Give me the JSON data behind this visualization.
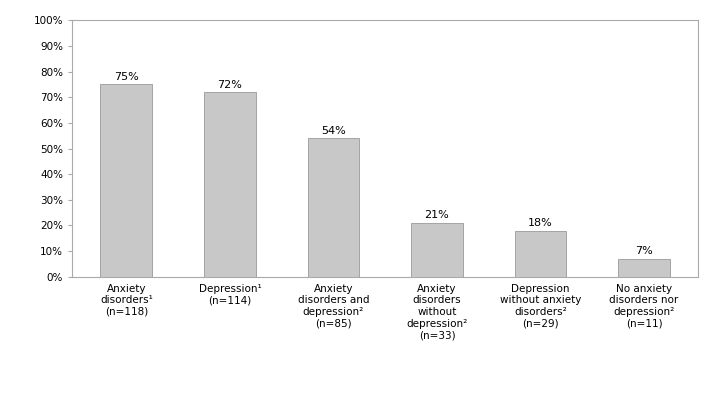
{
  "categories": [
    "Anxiety\ndisorders¹\n(n=118)",
    "Depression¹\n(n=114)",
    "Anxiety\ndisorders and\ndepression²\n(n=85)",
    "Anxiety\ndisorders\nwithout\ndepression²\n(n=33)",
    "Depression\nwithout anxiety\ndisorders²\n(n=29)",
    "No anxiety\ndisorders nor\ndepression²\n(n=11)"
  ],
  "values": [
    75,
    72,
    54,
    21,
    18,
    7
  ],
  "labels": [
    "75%",
    "72%",
    "54%",
    "21%",
    "18%",
    "7%"
  ],
  "bar_color": "#c8c8c8",
  "bar_edgecolor": "#999999",
  "background_color": "#ffffff",
  "ylim": [
    0,
    100
  ],
  "yticks": [
    0,
    10,
    20,
    30,
    40,
    50,
    60,
    70,
    80,
    90,
    100
  ],
  "ytick_labels": [
    "0%",
    "10%",
    "20%",
    "30%",
    "40%",
    "50%",
    "60%",
    "70%",
    "80%",
    "90%",
    "100%"
  ],
  "label_fontsize": 8,
  "tick_fontsize": 7.5,
  "bar_width": 0.5,
  "spine_color": "#aaaaaa"
}
